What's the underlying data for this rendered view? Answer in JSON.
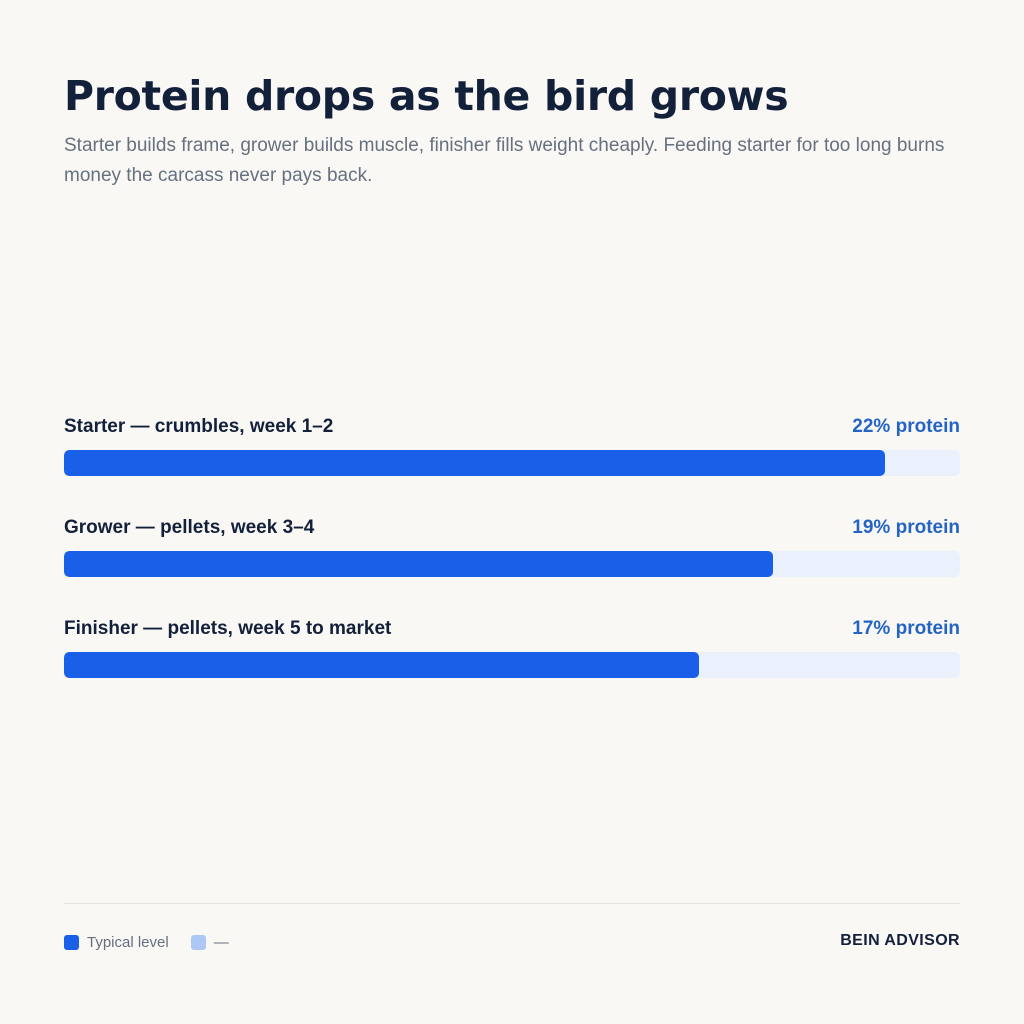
{
  "title": "Protein drops as the bird grows",
  "subtitle": "Starter builds frame, grower builds muscle, finisher fills weight cheaply. Feeding starter for too long burns money the carcass never pays back.",
  "chart_data": {
    "type": "bar",
    "orientation": "horizontal",
    "categories": [
      "Starter — crumbles, week 1–2",
      "Grower — pellets, week 3–4",
      "Finisher — pellets, week 5 to market"
    ],
    "value_labels": [
      "22% protein",
      "19% protein",
      "17% protein"
    ],
    "series": [
      {
        "name": "Typical level",
        "values": [
          22,
          19,
          17
        ]
      }
    ],
    "xlim": [
      0,
      24
    ],
    "grid": false,
    "legend_position": "bottom-left"
  },
  "legend": {
    "items": [
      {
        "label": "Typical level",
        "color": "#1a5fe8"
      },
      {
        "label": "—",
        "color": "#adc8f5"
      }
    ]
  },
  "colors": {
    "bar": "#1a5fe8",
    "track": "#eaf1fc",
    "value_text": "#2364c4"
  },
  "brand": "BEIN ADVISOR"
}
